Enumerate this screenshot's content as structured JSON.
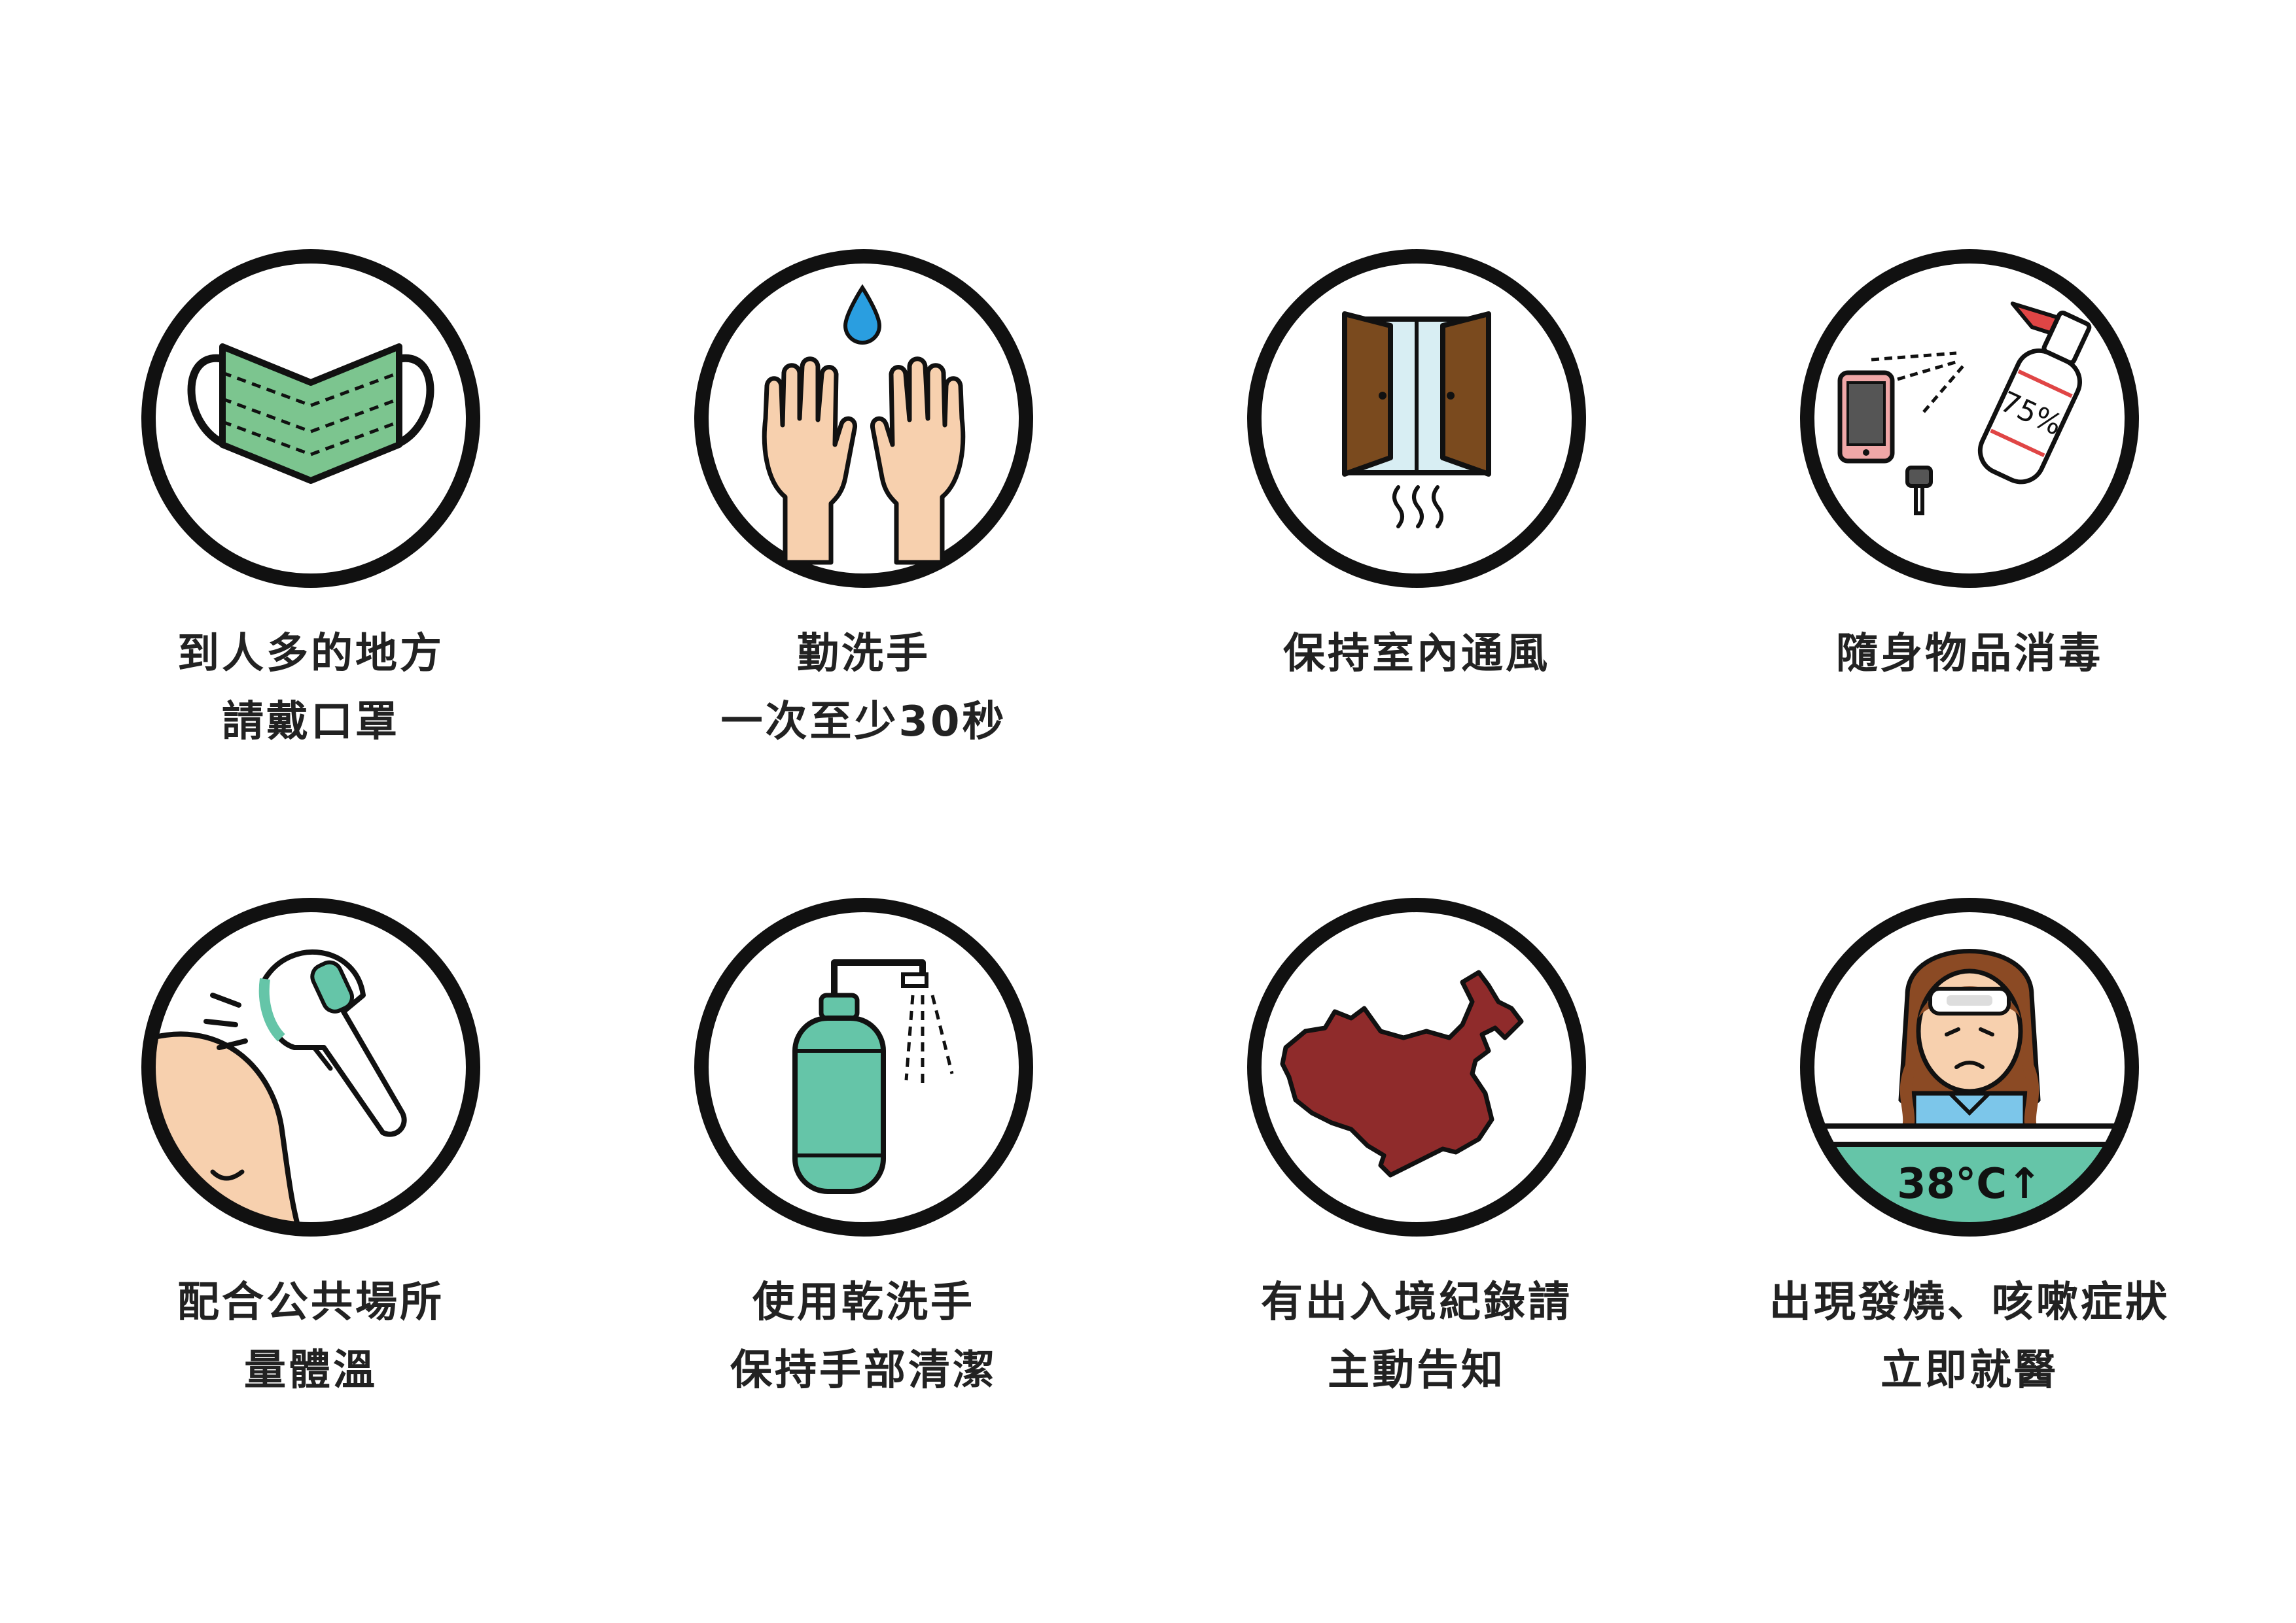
{
  "colors": {
    "outline": "#111111",
    "mint": "#65c5a8",
    "mask_green": "#7cc58f",
    "skin": "#f7d0ae",
    "water": "#2a9ee0",
    "door_brown": "#7a4a1e",
    "glass": "#d8eef3",
    "phone_pink": "#f0a7a7",
    "bottle_label_red": "#e04545",
    "map_red": "#8f2b2b",
    "hair_brown": "#8b4a24",
    "shirt_blue": "#7cc6ea"
  },
  "items": [
    {
      "icon": "face-mask-icon",
      "lines": [
        "到人多的地方",
        "請戴口罩"
      ]
    },
    {
      "icon": "hand-washing-icon",
      "lines": [
        "勤洗手",
        "一次至少30秒"
      ]
    },
    {
      "icon": "open-window-icon",
      "lines": [
        "保持室內通風",
        ""
      ]
    },
    {
      "icon": "disinfect-spray-icon",
      "lines": [
        "隨身物品消毒",
        ""
      ],
      "bottle_label": "75%"
    },
    {
      "icon": "forehead-thermometer-icon",
      "lines": [
        "配合公共場所",
        "量體溫"
      ]
    },
    {
      "icon": "hand-sanitizer-icon",
      "lines": [
        "使用乾洗手",
        "保持手部清潔"
      ]
    },
    {
      "icon": "travel-map-icon",
      "lines": [
        "有出入境紀錄請",
        "主動告知"
      ]
    },
    {
      "icon": "fever-girl-icon",
      "lines": [
        "出現發燒、咳嗽症狀",
        "立即就醫"
      ],
      "temperature": "38°C↑"
    }
  ]
}
